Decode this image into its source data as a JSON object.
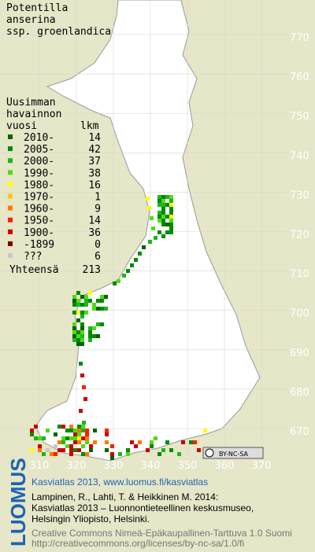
{
  "header": {
    "title_lines": [
      "Potentilla",
      "anserina",
      "ssp. groenlandica"
    ]
  },
  "legend": {
    "heading_lines": [
      "Uusimman",
      "havainnon"
    ],
    "col_period": "vuosi",
    "col_count": "lkm",
    "rows": [
      {
        "label": "2010-",
        "count": "14",
        "color": "#006400"
      },
      {
        "label": "2005-",
        "count": "42",
        "color": "#008c00"
      },
      {
        "label": "2000-",
        "count": "37",
        "color": "#1eb41e"
      },
      {
        "label": "1990-",
        "count": "38",
        "color": "#50dc14"
      },
      {
        "label": "1980-",
        "count": "16",
        "color": "#ffff00"
      },
      {
        "label": "1970-",
        "count": "1",
        "color": "#ffc800"
      },
      {
        "label": "1960-",
        "count": "9",
        "color": "#ff7800"
      },
      {
        "label": "1950-",
        "count": "14",
        "color": "#ff1e00"
      },
      {
        "label": "1900-",
        "count": "36",
        "color": "#c80000"
      },
      {
        "label": "-1899",
        "count": "0",
        "color": "#780000"
      },
      {
        "label": "???",
        "count": "6",
        "color": "#c8c8c8"
      }
    ],
    "total_label": "Yhteensä",
    "total": "213"
  },
  "grid": {
    "y_labels": [
      "770",
      "760",
      "750",
      "740",
      "730",
      "720",
      "710",
      "700",
      "690",
      "680",
      "670"
    ],
    "x_labels": [
      "310",
      "320",
      "330",
      "340",
      "350",
      "360",
      "370"
    ]
  },
  "license_badge": "BY-NC-SA",
  "footer": {
    "logo": "LUOMUS",
    "link": "Kasviatlas 2013, www.luomus.fi/kasviatlas",
    "citation_lines": [
      "Lampinen, R., Lahti, T. & Heikkinen M. 2014:",
      "Kasviatlas 2013 – Luonnontieteellinen keskusmuseo,",
      "Helsingin Yliopisto, Helsinki."
    ],
    "license_lines": [
      "Creative Commons Nimeä-Epäkaupallinen-Tarttuva 1.0 Suomi",
      "http://creativecommons.org/licenses/by-nc-sa/1.0/fi"
    ]
  }
}
